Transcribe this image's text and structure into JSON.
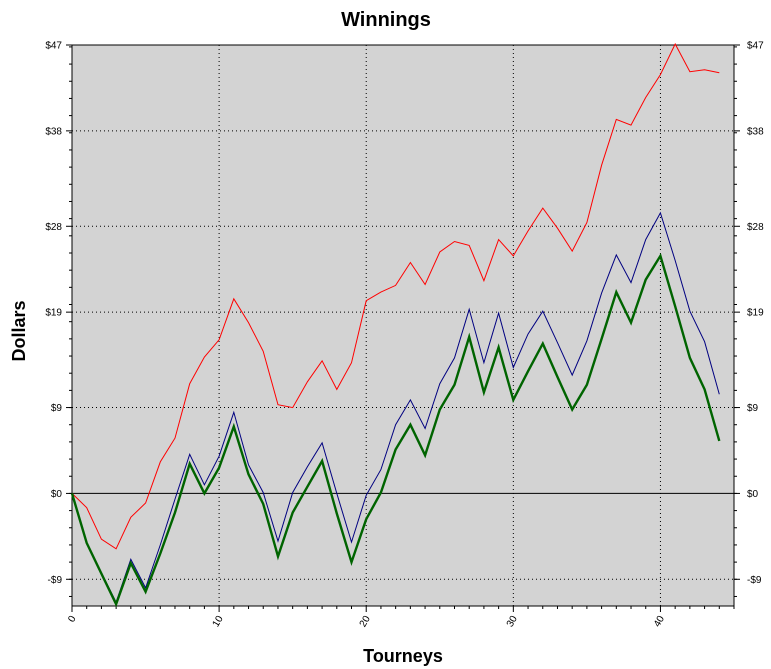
{
  "chart_data": {
    "type": "line",
    "title": "Winnings",
    "xlabel": "Tourneys",
    "ylabel": "Dollars",
    "xlim": [
      0,
      45
    ],
    "ylim": [
      -11.8,
      47
    ],
    "x_ticks": [
      0,
      10,
      20,
      30,
      40
    ],
    "x_tick_labels": [
      "0",
      "10",
      "20",
      "30",
      "40"
    ],
    "y_ticks": [
      -9,
      0,
      9,
      19,
      28,
      38,
      47
    ],
    "y_tick_labels": [
      "-$9",
      "$0",
      "$9",
      "$19",
      "$28",
      "$38",
      "$47"
    ],
    "grid": true,
    "background": "#d3d3d3",
    "series": [
      {
        "color": "#ff0000",
        "width": 1,
        "x": [
          0,
          1,
          2,
          3,
          4,
          5,
          6,
          7,
          8,
          9,
          10,
          11,
          12,
          13,
          14,
          15,
          16,
          17,
          18,
          19,
          20,
          21,
          22,
          23,
          24,
          25,
          26,
          27,
          28,
          29,
          30,
          31,
          32,
          33,
          34,
          35,
          36,
          37,
          38,
          39,
          40,
          41,
          42,
          43,
          44
        ],
        "values": [
          0,
          -1.5,
          -4.8,
          -5.8,
          -2.5,
          -1,
          3.3,
          5.8,
          11.5,
          14.3,
          16.1,
          20.4,
          17.9,
          14.9,
          9.3,
          9,
          11.7,
          13.9,
          10.9,
          13.7,
          20.2,
          21.1,
          21.8,
          24.2,
          21.9,
          25.3,
          26.4,
          26,
          22.3,
          26.6,
          24.9,
          27.5,
          29.9,
          27.8,
          25.4,
          28.4,
          34.4,
          39.2,
          38.6,
          41.5,
          43.9,
          47.1,
          44.2,
          44.4,
          44.1
        ]
      },
      {
        "color": "#000080",
        "width": 1,
        "x": [
          0,
          1,
          2,
          3,
          4,
          5,
          6,
          7,
          8,
          9,
          10,
          11,
          12,
          13,
          14,
          15,
          16,
          17,
          18,
          19,
          20,
          21,
          22,
          23,
          24,
          25,
          26,
          27,
          28,
          29,
          30,
          31,
          32,
          33,
          34,
          35,
          36,
          37,
          38,
          39,
          40,
          41,
          42,
          43,
          44
        ],
        "values": [
          0,
          -5.2,
          -8.3,
          -11.4,
          -6.9,
          -9.9,
          -5.4,
          -0.6,
          4.1,
          0.9,
          3.9,
          8.5,
          3,
          0.1,
          -5,
          0.1,
          2.8,
          5.3,
          0,
          -5.1,
          -0.2,
          2.5,
          7.2,
          9.8,
          6.8,
          11.5,
          14.2,
          19.3,
          13.7,
          18.9,
          13.2,
          16.7,
          19.1,
          15.8,
          12.4,
          16,
          21,
          25,
          22.1,
          26.6,
          29.4,
          24.4,
          19.1,
          15.9,
          10.4
        ]
      },
      {
        "color": "#006400",
        "width": 2.4,
        "x": [
          0,
          1,
          2,
          3,
          4,
          5,
          6,
          7,
          8,
          9,
          10,
          11,
          12,
          13,
          14,
          15,
          16,
          17,
          18,
          19,
          20,
          21,
          22,
          23,
          24,
          25,
          26,
          27,
          28,
          29,
          30,
          31,
          32,
          33,
          34,
          35,
          36,
          37,
          38,
          39,
          40,
          41,
          42,
          43,
          44
        ],
        "values": [
          0,
          -5.2,
          -8.4,
          -11.6,
          -7.3,
          -10.3,
          -6.3,
          -2,
          3.1,
          0,
          2.7,
          7,
          2,
          -1.1,
          -6.6,
          -2,
          0.7,
          3.4,
          -2.1,
          -7.2,
          -2.7,
          0.1,
          4.6,
          7.2,
          4,
          8.8,
          11.4,
          16.4,
          10.6,
          15.3,
          9.8,
          12.8,
          15.7,
          12.2,
          8.8,
          11.4,
          16.2,
          21.1,
          17.9,
          22.4,
          24.9,
          19.6,
          14.2,
          10.9,
          5.5
        ]
      }
    ]
  }
}
